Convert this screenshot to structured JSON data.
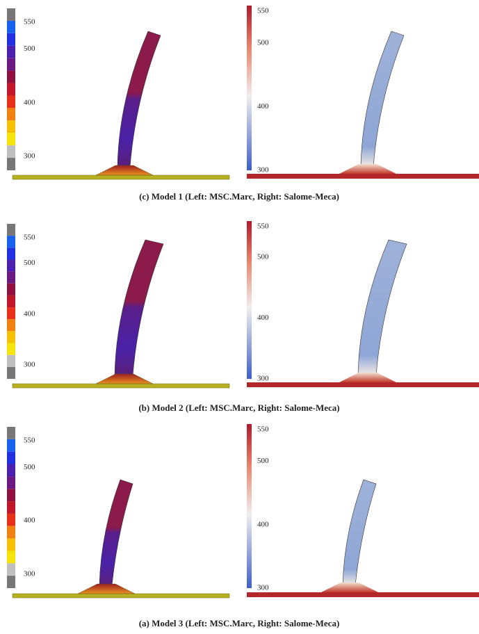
{
  "panels": [
    {
      "caption": "(c)   Model 1 (Left: MSC.Marc, Right: Salome-Meca)",
      "left_scale": [
        550,
        500,
        400,
        300
      ],
      "right_scale": [
        550,
        500,
        400,
        300
      ]
    },
    {
      "caption": "(b)   Model 2 (Left: MSC.Marc, Right: Salome-Meca)",
      "left_scale": [
        550,
        500,
        400,
        300
      ],
      "right_scale": [
        550,
        500,
        400,
        300
      ]
    },
    {
      "caption": "(a)   Model 3 (Left: MSC.Marc, Right: Salome-Meca)",
      "left_scale": [
        550,
        500,
        400,
        300
      ],
      "right_scale": [
        550,
        500,
        400,
        300
      ]
    }
  ]
}
